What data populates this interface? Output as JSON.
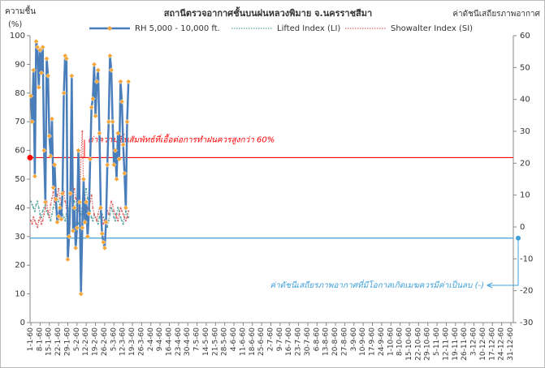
{
  "chart_data": {
    "type": "line",
    "title": "สถานีตรวจอากาศชั้นบนฝนหลวงพิมาย  จ.นครราชสีมา",
    "y_label_lines": [
      "ความชื้น",
      "(%)"
    ],
    "y2_label": "ค่าดัชนีเสถียรภาพอากาศ",
    "x": [
      1,
      2,
      3,
      4,
      5,
      6,
      7,
      8,
      9,
      10,
      11,
      12,
      13,
      14,
      15,
      16,
      17,
      18,
      19,
      20,
      21,
      22,
      23,
      24,
      25,
      26,
      27,
      28,
      29,
      30,
      31,
      32,
      33,
      34,
      35,
      36,
      37,
      38,
      39,
      40,
      41,
      42,
      43,
      44,
      45,
      46,
      47,
      48,
      49,
      50,
      51,
      52,
      53,
      54,
      55,
      56,
      57,
      58,
      59,
      60,
      61,
      62,
      63,
      64,
      65,
      66,
      67,
      68,
      69,
      70,
      71,
      72,
      73,
      74,
      75
    ],
    "series": [
      {
        "name": "RH 5,000 - 10,000 ft.",
        "color": "#4a7ebb",
        "marker_color": "#f4a63a",
        "axis": "y",
        "values": [
          79,
          70,
          88,
          51,
          98,
          96,
          82,
          95,
          87,
          96,
          60,
          42,
          92,
          86,
          65,
          58,
          71,
          47,
          55,
          43,
          35,
          37,
          40,
          36,
          45,
          80,
          93,
          92,
          22,
          30,
          45,
          86,
          32,
          40,
          26,
          33,
          60,
          42,
          10,
          33,
          50,
          35,
          42,
          30,
          38,
          57,
          75,
          78,
          90,
          72,
          84,
          88,
          66,
          40,
          31,
          28,
          26,
          35,
          55,
          70,
          93,
          88,
          70,
          55,
          60,
          50,
          66,
          57,
          84,
          77,
          62,
          52,
          40,
          70,
          84
        ]
      },
      {
        "name": "Lifted Index (LI)",
        "color": "#5aa6a0",
        "axis": "y2",
        "values": [
          8,
          7,
          6,
          5,
          7,
          8,
          6,
          4,
          3,
          5,
          6,
          7,
          5,
          4,
          3,
          2,
          4,
          6,
          8,
          9,
          10,
          8,
          7,
          5,
          4,
          3,
          2,
          4,
          6,
          5,
          12,
          15,
          10,
          8,
          6,
          3,
          1,
          2,
          4,
          6,
          8,
          10,
          12,
          9,
          7,
          5,
          3,
          2,
          4,
          3,
          2,
          1,
          3,
          5,
          4,
          3,
          2,
          1,
          0,
          2,
          4,
          6,
          5,
          3,
          2,
          4,
          6,
          5,
          3,
          2,
          1,
          3,
          5,
          4,
          3
        ]
      },
      {
        "name": "Showalter Index (SI)",
        "color": "#e06666",
        "axis": "y2",
        "values": [
          2,
          1,
          3,
          2,
          1,
          0,
          2,
          3,
          1,
          2,
          4,
          6,
          8,
          5,
          3,
          7,
          9,
          11,
          8,
          6,
          10,
          12,
          9,
          7,
          13,
          11,
          8,
          6,
          4,
          3,
          8,
          14,
          10,
          12,
          9,
          7,
          5,
          8,
          22,
          30,
          12,
          9,
          7,
          6,
          5,
          8,
          10,
          6,
          4,
          3,
          2,
          4,
          6,
          5,
          3,
          1,
          2,
          3,
          5,
          4,
          6,
          8,
          7,
          5,
          4,
          3,
          2,
          4,
          6,
          5,
          4,
          3,
          2,
          3,
          5
        ]
      }
    ],
    "reference_lines": [
      {
        "value": 57.5,
        "axis": "y",
        "color": "#ff0000",
        "label": "ค่าความชื้นสัมพัทธ์ที่เอื้อต่อการทำฝนควรสูงกว่า 60%"
      },
      {
        "value": -3.5,
        "axis": "y2",
        "color": "#3fa0d8",
        "label": "ค่าดัชนีเสถียรภาพอากาศที่มีโอกาสเกิดเมฆควรมีค่าเป็นลบ (-)"
      }
    ],
    "xlim": [
      1,
      365
    ],
    "xticks": [
      {
        "value": 1,
        "label": "1-1-60"
      },
      {
        "value": 8,
        "label": "8-1-60"
      },
      {
        "value": 15,
        "label": "15-1-60"
      },
      {
        "value": 22,
        "label": "22-1-60"
      },
      {
        "value": 29,
        "label": "29-1-60"
      },
      {
        "value": 36,
        "label": "5-2-60"
      },
      {
        "value": 43,
        "label": "12-2-60"
      },
      {
        "value": 50,
        "label": "19-2-60"
      },
      {
        "value": 57,
        "label": "26-2-60"
      },
      {
        "value": 64,
        "label": "5-3-60"
      },
      {
        "value": 71,
        "label": "12-3-60"
      },
      {
        "value": 78,
        "label": "19-3-60"
      },
      {
        "value": 85,
        "label": "26-3-60"
      },
      {
        "value": 92,
        "label": "2-4-60"
      },
      {
        "value": 99,
        "label": "9-4-60"
      },
      {
        "value": 106,
        "label": "16-4-60"
      },
      {
        "value": 113,
        "label": "23-4-60"
      },
      {
        "value": 120,
        "label": "30-4-60"
      },
      {
        "value": 127,
        "label": "7-5-60"
      },
      {
        "value": 134,
        "label": "14-5-60"
      },
      {
        "value": 141,
        "label": "21-5-60"
      },
      {
        "value": 148,
        "label": "28-5-60"
      },
      {
        "value": 155,
        "label": "4-6-60"
      },
      {
        "value": 162,
        "label": "11-6-60"
      },
      {
        "value": 169,
        "label": "18-6-60"
      },
      {
        "value": 176,
        "label": "25-6-60"
      },
      {
        "value": 183,
        "label": "2-7-60"
      },
      {
        "value": 190,
        "label": "9-7-60"
      },
      {
        "value": 197,
        "label": "16-7-60"
      },
      {
        "value": 204,
        "label": "23-7-60"
      },
      {
        "value": 211,
        "label": "30-7-60"
      },
      {
        "value": 218,
        "label": "6-8-60"
      },
      {
        "value": 225,
        "label": "13-8-60"
      },
      {
        "value": 232,
        "label": "20-8-60"
      },
      {
        "value": 239,
        "label": "27-8-60"
      },
      {
        "value": 246,
        "label": "3-9-60"
      },
      {
        "value": 253,
        "label": "10-9-60"
      },
      {
        "value": 260,
        "label": "17-9-60"
      },
      {
        "value": 267,
        "label": "24-9-60"
      },
      {
        "value": 274,
        "label": "1-10-60"
      },
      {
        "value": 281,
        "label": "8-10-60"
      },
      {
        "value": 288,
        "label": "15-10-60"
      },
      {
        "value": 295,
        "label": "22-10-60"
      },
      {
        "value": 302,
        "label": "29-10-60"
      },
      {
        "value": 309,
        "label": "5-11-60"
      },
      {
        "value": 316,
        "label": "12-11-60"
      },
      {
        "value": 323,
        "label": "19-11-60"
      },
      {
        "value": 330,
        "label": "26-11-60"
      },
      {
        "value": 337,
        "label": "3-12-60"
      },
      {
        "value": 344,
        "label": "10-12-60"
      },
      {
        "value": 351,
        "label": "17-12-60"
      },
      {
        "value": 358,
        "label": "24-12-60"
      },
      {
        "value": 365,
        "label": "31-12-60"
      }
    ],
    "ylim": [
      0,
      100
    ],
    "yticks": [
      0,
      10,
      20,
      30,
      40,
      50,
      60,
      70,
      80,
      90,
      100
    ],
    "y2lim": [
      -30,
      60
    ],
    "y2ticks": [
      -30,
      -20,
      -10,
      0,
      10,
      20,
      30,
      40,
      50,
      60
    ]
  }
}
